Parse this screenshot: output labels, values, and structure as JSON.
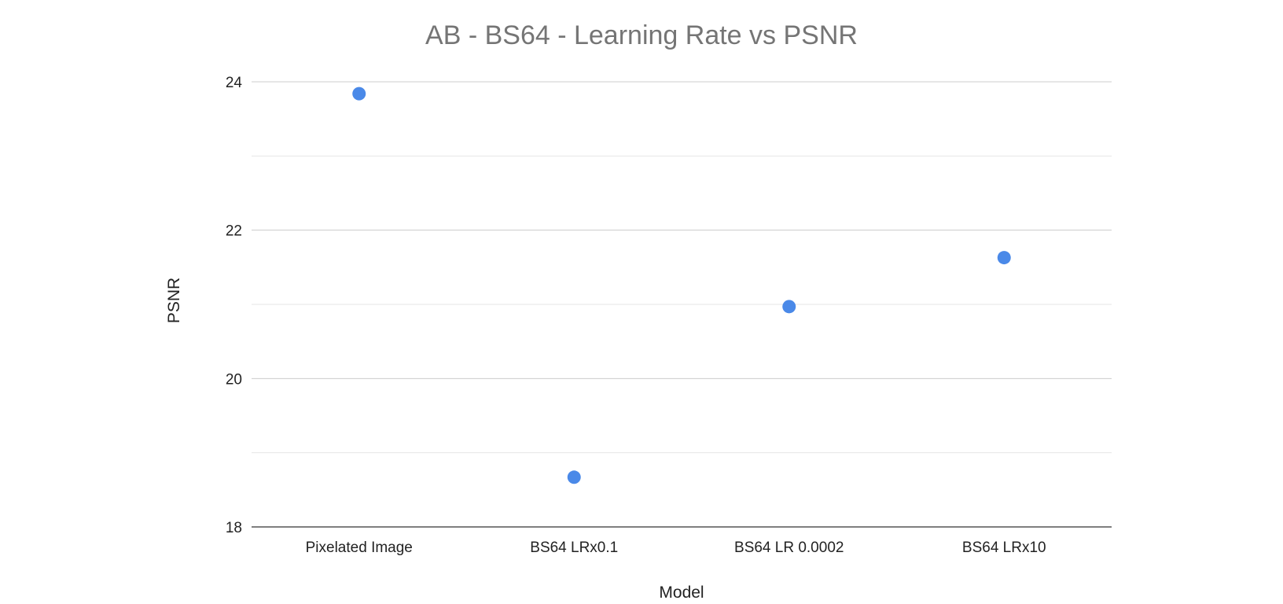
{
  "chart_data": {
    "type": "scatter",
    "title": "AB - BS64 - Learning Rate vs PSNR",
    "xlabel": "Model",
    "ylabel": "PSNR",
    "categories": [
      "Pixelated Image",
      "BS64 LRx0.1",
      "BS64 LR 0.0002",
      "BS64 LRx10"
    ],
    "series": [
      {
        "values": [
          23.84,
          18.67,
          20.97,
          21.63
        ],
        "color": "#4a89e8"
      }
    ],
    "ylim": [
      18,
      24
    ],
    "yticks": [
      18,
      20,
      22,
      24
    ],
    "ytick_labels": [
      "18",
      "20",
      "22",
      "24"
    ],
    "minor_gridlines": true,
    "grid": true,
    "legend": "none"
  }
}
